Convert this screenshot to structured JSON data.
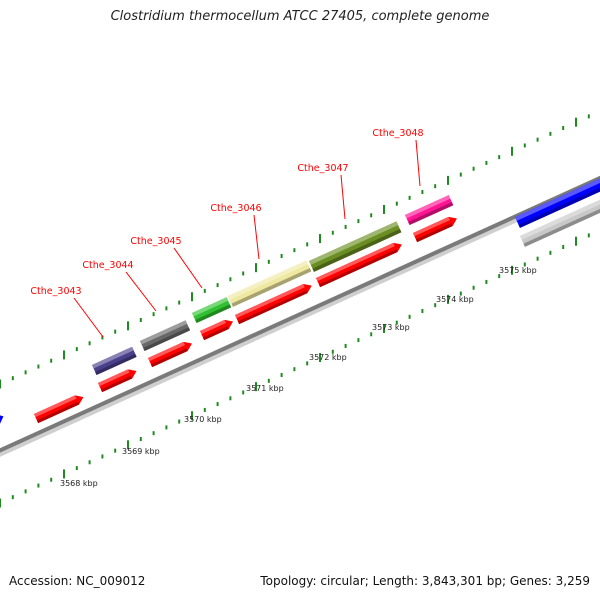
{
  "title": "Clostridium thermocellum ATCC 27405, complete genome",
  "footer": {
    "accession": "Accession: NC_009012",
    "summary": "Topology: circular; Length: 3,843,301 bp; Genes: 3,259"
  },
  "colors": {
    "background": "#ffffff",
    "backbone": "#808080",
    "tick": "#1f8a1f",
    "gene_label": "#ff0000",
    "leader_line": "#ff0000",
    "cds": "#ff0000",
    "scale_label": "#222222"
  },
  "scale_labels": [
    "3568 kbp",
    "3569 kbp",
    "3570 kbp",
    "3571 kbp",
    "3572 kbp",
    "3573 kbp",
    "3574 kbp",
    "3575 kbp"
  ],
  "labeled_genes": [
    {
      "label": "Cthe_3043",
      "color": "#4a3f8a"
    },
    {
      "label": "Cthe_3044",
      "color": "#686868"
    },
    {
      "label": "Cthe_3045",
      "color": "#2fc12f"
    },
    {
      "label": "Cthe_3046",
      "color": "#eee8a0"
    },
    {
      "label": "Cthe_3047",
      "color": "#6b8e23"
    },
    {
      "label": "Cthe_3048",
      "color": "#ff1493"
    }
  ],
  "other_features": [
    {
      "name": "blue-feature",
      "color": "#0000ff"
    },
    {
      "name": "silver-feature",
      "color": "#c8c8c8"
    }
  ]
}
